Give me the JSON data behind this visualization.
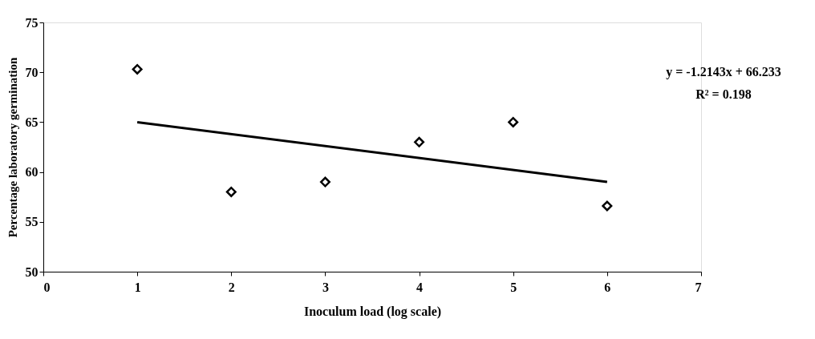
{
  "chart_data": {
    "type": "scatter",
    "xlabel": "Inoculum load (log scale)",
    "ylabel": "Percentage laboratory germination",
    "xlim": [
      0,
      7
    ],
    "xticks": [
      0,
      1,
      2,
      3,
      4,
      5,
      6,
      7
    ],
    "ylim": [
      50,
      75
    ],
    "yticks": [
      50,
      55,
      60,
      65,
      70,
      75
    ],
    "grid": false,
    "legend": false,
    "marker": "diamond",
    "x": [
      1,
      2,
      3,
      4,
      5,
      6
    ],
    "series": [
      {
        "color": "#000000",
        "values": [
          70.3,
          58.0,
          59.0,
          63.0,
          65.0,
          56.6
        ]
      },
      {
        "type": "line",
        "color": "#000000",
        "marker": "none",
        "line_style": "solid",
        "x": [
          1,
          6
        ],
        "values": [
          65.0,
          59.0
        ]
      }
    ],
    "annotations": [
      "y = -1.2143x + 66.233",
      "R² = 0.198"
    ]
  }
}
